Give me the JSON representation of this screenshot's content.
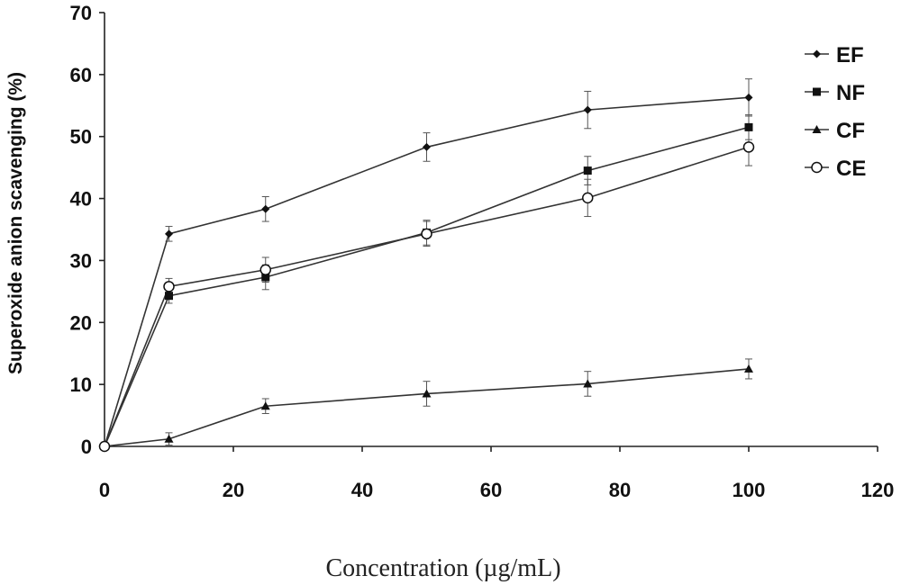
{
  "chart_data": {
    "type": "line",
    "xlabel": "Concentration (µg/mL)",
    "ylabel": "Superoxide anion scavenging (%)",
    "xlim": [
      0,
      120
    ],
    "ylim": [
      0,
      70
    ],
    "xticks": [
      0,
      20,
      40,
      60,
      80,
      100,
      120
    ],
    "yticks": [
      0,
      10,
      20,
      30,
      40,
      50,
      60,
      70
    ],
    "grid": false,
    "legend_position": "top-right",
    "x": [
      0,
      10,
      25,
      50,
      75,
      100
    ],
    "series": [
      {
        "name": "EF",
        "marker": "diamond",
        "values": [
          0,
          34.3,
          38.3,
          48.3,
          54.3,
          56.3
        ],
        "errors": [
          0,
          1.2,
          2.0,
          2.3,
          3.0,
          3.0
        ]
      },
      {
        "name": "NF",
        "marker": "square",
        "values": [
          0,
          24.3,
          27.3,
          34.5,
          44.5,
          51.5
        ],
        "errors": [
          0,
          1.2,
          2.0,
          2.0,
          2.3,
          2.0
        ]
      },
      {
        "name": "CF",
        "marker": "triangle",
        "values": [
          0,
          1.2,
          6.5,
          8.5,
          10.1,
          12.5
        ],
        "errors": [
          0,
          1.0,
          1.2,
          2.0,
          2.0,
          1.6
        ]
      },
      {
        "name": "CE",
        "marker": "open-circle",
        "values": [
          0,
          25.8,
          28.5,
          34.3,
          40.1,
          48.3
        ],
        "errors": [
          0,
          1.3,
          2.0,
          2.0,
          3.0,
          3.0
        ]
      }
    ]
  }
}
